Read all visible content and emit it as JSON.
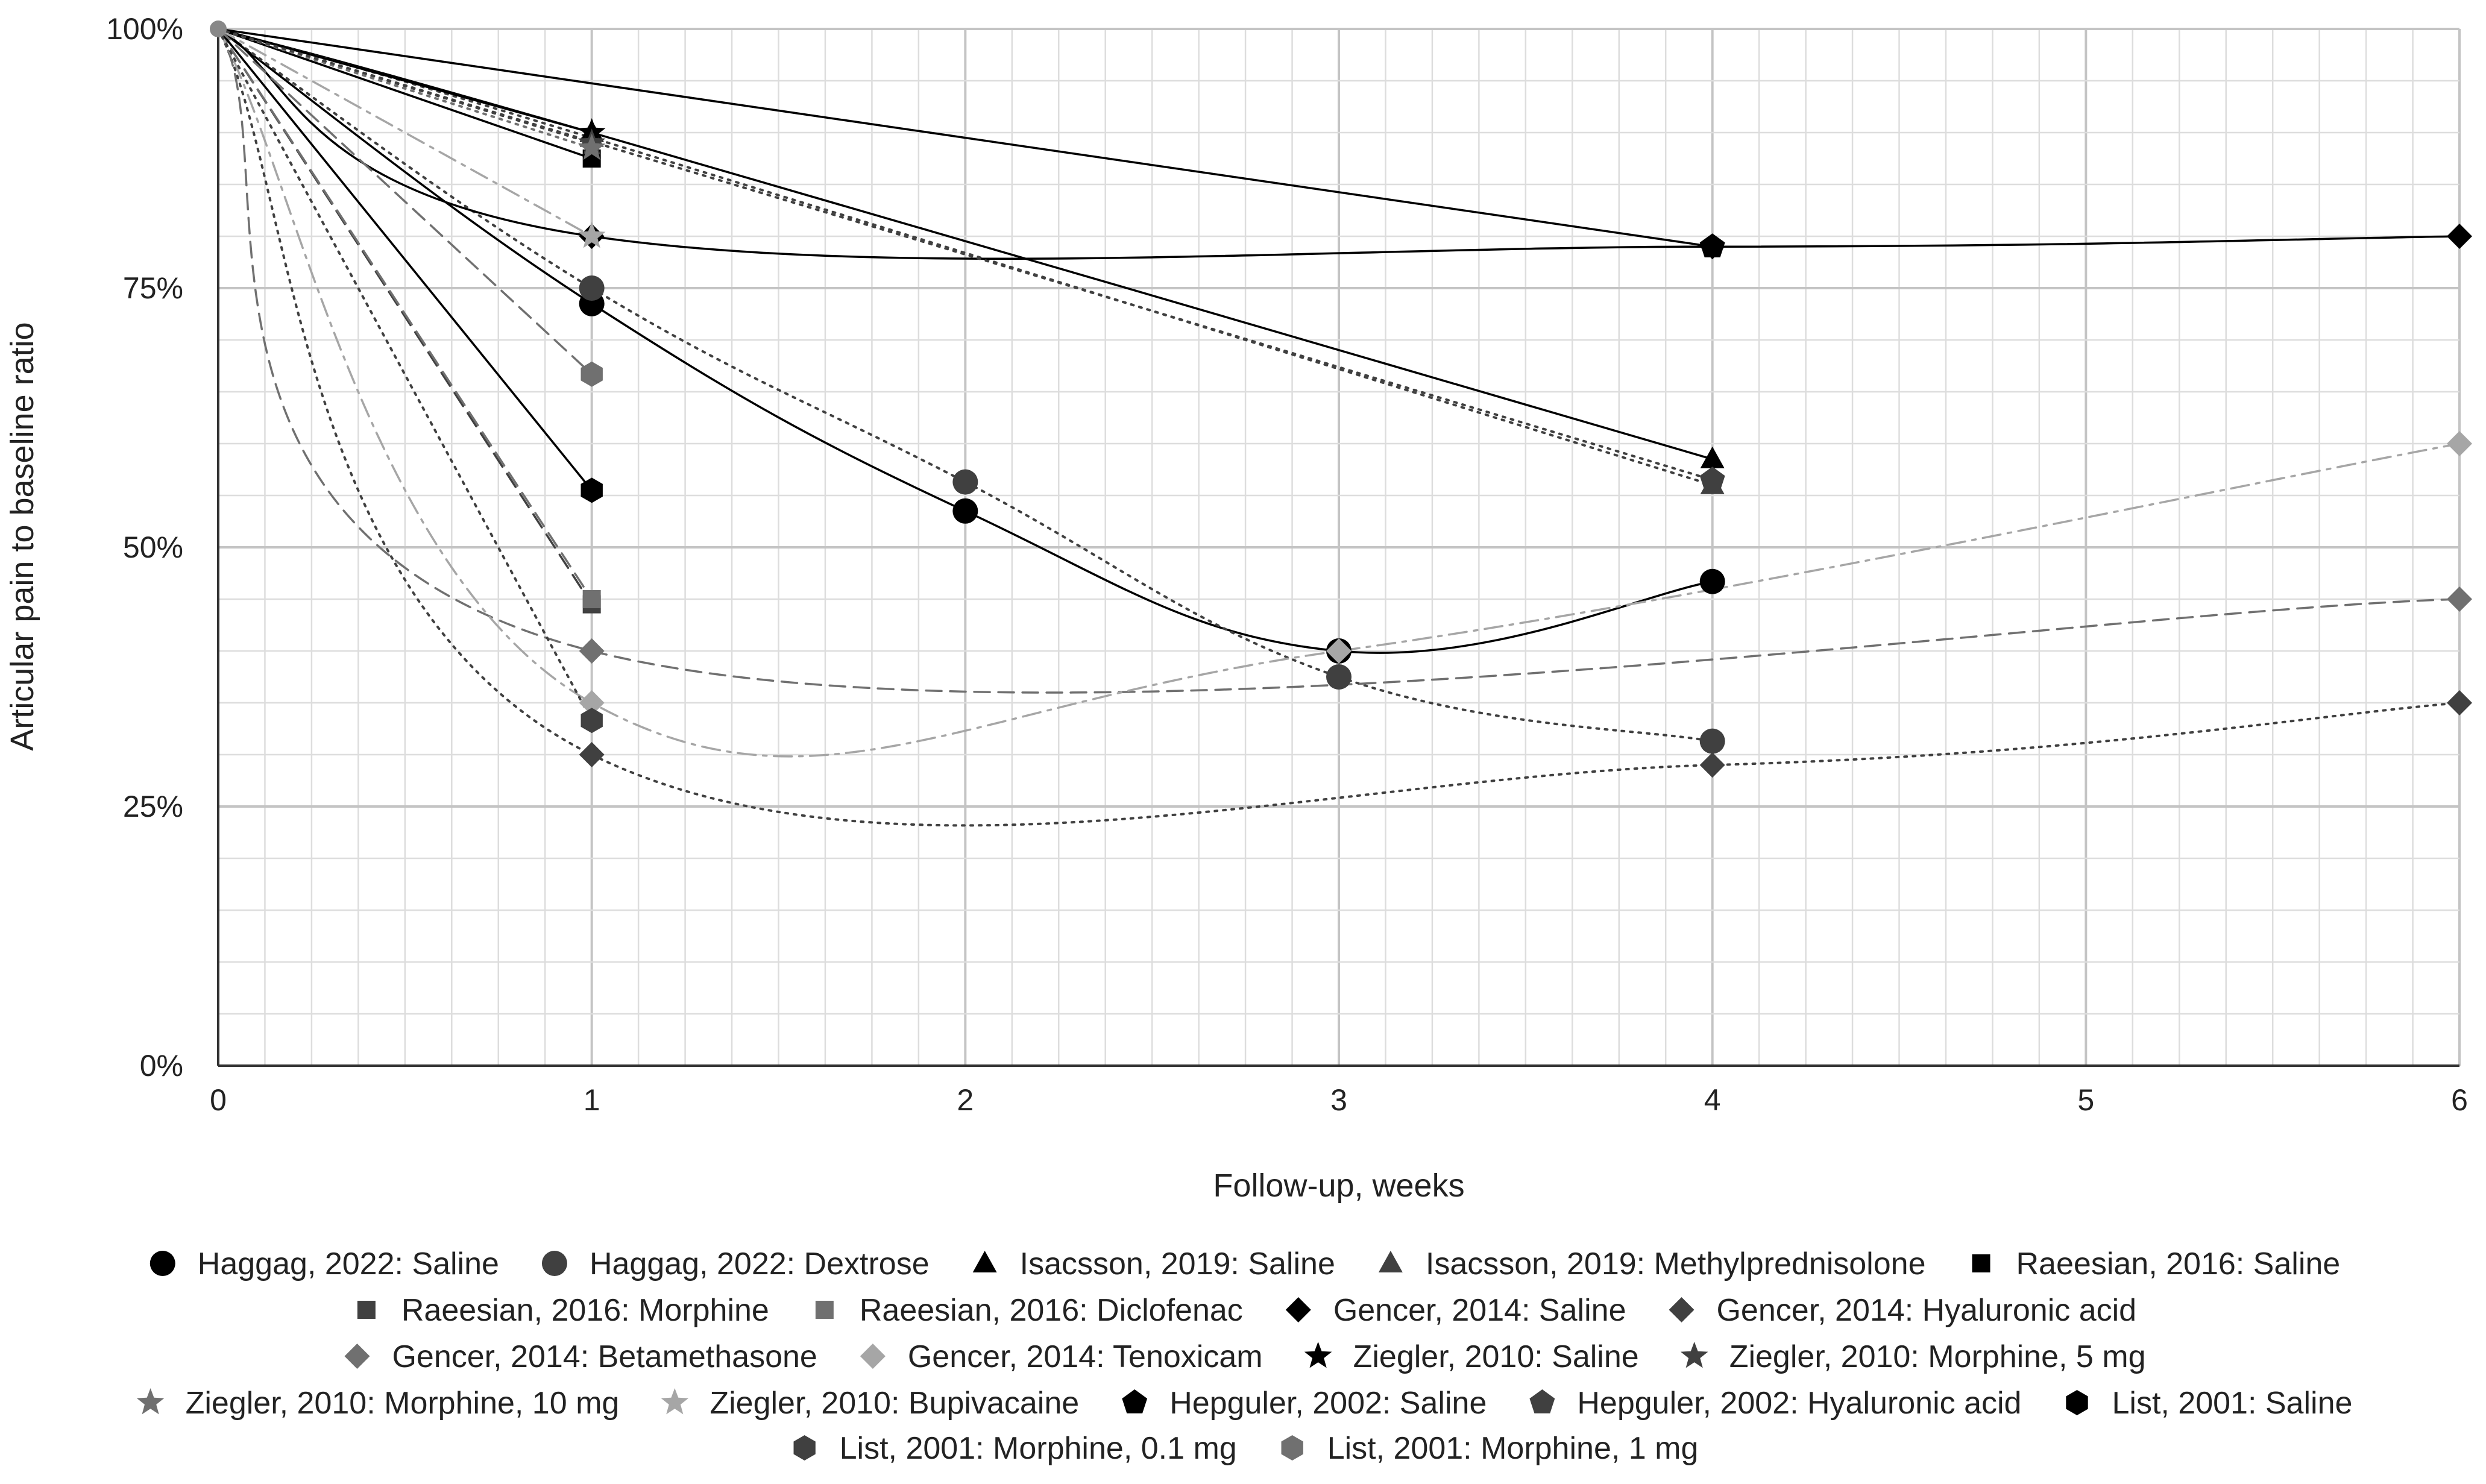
{
  "chart_data": {
    "type": "line",
    "title": "",
    "xlabel": "Follow-up, weeks",
    "ylabel": "Articular pain to baseline ratio",
    "xlim": [
      0,
      6
    ],
    "ylim": [
      0,
      100
    ],
    "x_ticks": [
      "0",
      "1",
      "2",
      "3",
      "4",
      "5",
      "6"
    ],
    "y_ticks": [
      "0%",
      "25%",
      "50%",
      "75%",
      "100%"
    ],
    "grid": true,
    "legend_position": "bottom",
    "series": [
      {
        "name": "Haggag, 2022: Saline",
        "marker": "circle",
        "color": "#000000",
        "dash": "solid",
        "points": [
          [
            0,
            100
          ],
          [
            1,
            73.5
          ],
          [
            2,
            53.5
          ],
          [
            3,
            40
          ],
          [
            4,
            46.7
          ]
        ]
      },
      {
        "name": "Haggag, 2022: Dextrose",
        "marker": "circle",
        "color": "#404040",
        "dash": "dotted",
        "points": [
          [
            0,
            100
          ],
          [
            1,
            75
          ],
          [
            2,
            56.3
          ],
          [
            3,
            37.5
          ],
          [
            4,
            31.3
          ]
        ]
      },
      {
        "name": "Isacsson, 2019: Saline",
        "marker": "triangle",
        "color": "#000000",
        "dash": "solid",
        "points": [
          [
            0,
            100
          ],
          [
            1,
            90
          ],
          [
            4,
            58.5
          ]
        ]
      },
      {
        "name": "Isacsson, 2019: Methylprednisolone",
        "marker": "triangle",
        "color": "#404040",
        "dash": "dotted",
        "points": [
          [
            0,
            100
          ],
          [
            1,
            89.5
          ],
          [
            4,
            56
          ]
        ]
      },
      {
        "name": "Raeesian, 2016: Saline",
        "marker": "square",
        "color": "#000000",
        "dash": "solid",
        "points": [
          [
            0,
            100
          ],
          [
            1,
            87.5
          ]
        ]
      },
      {
        "name": "Raeesian, 2016: Morphine",
        "marker": "square",
        "color": "#404040",
        "dash": "dashed",
        "points": [
          [
            0,
            100
          ],
          [
            1,
            44.5
          ]
        ]
      },
      {
        "name": "Raeesian, 2016: Diclofenac",
        "marker": "square",
        "color": "#707070",
        "dash": "dashed",
        "points": [
          [
            0,
            100
          ],
          [
            1,
            45
          ]
        ]
      },
      {
        "name": "Gencer, 2014: Saline",
        "marker": "diamond",
        "color": "#000000",
        "dash": "solid",
        "points": [
          [
            0,
            100
          ],
          [
            1,
            80
          ],
          [
            4,
            79
          ],
          [
            6,
            80
          ]
        ]
      },
      {
        "name": "Gencer, 2014: Hyaluronic acid",
        "marker": "diamond",
        "color": "#404040",
        "dash": "dotted",
        "points": [
          [
            0,
            100
          ],
          [
            1,
            30
          ],
          [
            4,
            29
          ],
          [
            6,
            35
          ]
        ]
      },
      {
        "name": "Gencer, 2014: Betamethasone",
        "marker": "diamond",
        "color": "#707070",
        "dash": "dashed",
        "points": [
          [
            0,
            100
          ],
          [
            1,
            40
          ],
          [
            6,
            45
          ]
        ]
      },
      {
        "name": "Gencer, 2014: Tenoxicam",
        "marker": "diamond",
        "color": "#a6a6a6",
        "dash": "dashdot",
        "points": [
          [
            0,
            100
          ],
          [
            1,
            35
          ],
          [
            3,
            40
          ],
          [
            6,
            60
          ]
        ]
      },
      {
        "name": "Ziegler, 2010: Saline",
        "marker": "star",
        "color": "#000000",
        "dash": "solid",
        "points": [
          [
            0,
            100
          ],
          [
            1,
            90
          ]
        ]
      },
      {
        "name": "Ziegler, 2010: Morphine, 5 mg",
        "marker": "star",
        "color": "#404040",
        "dash": "dotted",
        "points": [
          [
            0,
            100
          ],
          [
            1,
            89
          ]
        ]
      },
      {
        "name": "Ziegler, 2010: Morphine, 10 mg",
        "marker": "star",
        "color": "#707070",
        "dash": "dotted",
        "points": [
          [
            0,
            100
          ],
          [
            1,
            88.5
          ]
        ]
      },
      {
        "name": "Ziegler, 2010: Bupivacaine",
        "marker": "star",
        "color": "#a6a6a6",
        "dash": "dashdot",
        "points": [
          [
            0,
            100
          ],
          [
            1,
            80
          ]
        ]
      },
      {
        "name": "Hepguler, 2002: Saline",
        "marker": "pentagon",
        "color": "#000000",
        "dash": "solid",
        "points": [
          [
            0,
            100
          ],
          [
            4,
            79
          ]
        ]
      },
      {
        "name": "Hepguler, 2002: Hyaluronic acid",
        "marker": "pentagon",
        "color": "#404040",
        "dash": "dotted",
        "points": [
          [
            0,
            100
          ],
          [
            4,
            56.5
          ]
        ]
      },
      {
        "name": "List, 2001: Saline",
        "marker": "hexagon",
        "color": "#000000",
        "dash": "solid",
        "points": [
          [
            0,
            100
          ],
          [
            1,
            55.5
          ]
        ]
      },
      {
        "name": "List, 2001: Morphine, 0.1 mg",
        "marker": "hexagon",
        "color": "#404040",
        "dash": "dotted",
        "points": [
          [
            0,
            100
          ],
          [
            1,
            33.3
          ]
        ]
      },
      {
        "name": "List, 2001: Morphine, 1 mg",
        "marker": "hexagon",
        "color": "#707070",
        "dash": "dashed",
        "points": [
          [
            0,
            100
          ],
          [
            1,
            66.7
          ]
        ]
      }
    ]
  }
}
